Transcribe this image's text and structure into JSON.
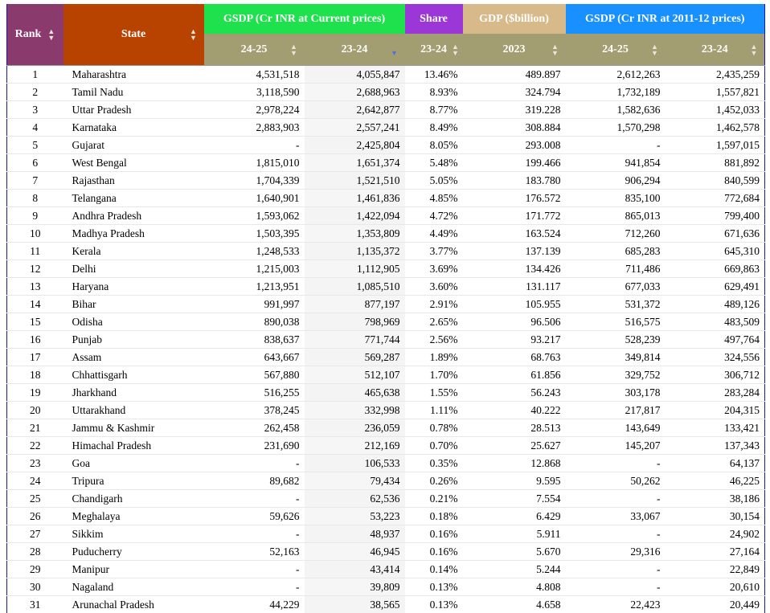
{
  "header": {
    "rank": "Rank",
    "state": "State",
    "groups": {
      "gsdp_current": "GSDP (Cr INR at Current prices)",
      "share": "Share",
      "gdp_billion": "GDP ($billion)",
      "gsdp_constant": "GSDP (Cr INR at 2011-12 prices)"
    },
    "subs": [
      "24-25",
      "23-24",
      "23-24",
      "2023",
      "24-25",
      "23-24"
    ]
  },
  "rows": [
    [
      "1",
      "Maharashtra",
      "4,531,518",
      "4,055,847",
      "13.46%",
      "489.897",
      "2,612,263",
      "2,435,259"
    ],
    [
      "2",
      "Tamil Nadu",
      "3,118,590",
      "2,688,963",
      "8.93%",
      "324.794",
      "1,732,189",
      "1,557,821"
    ],
    [
      "3",
      "Uttar Pradesh",
      "2,978,224",
      "2,642,877",
      "8.77%",
      "319.228",
      "1,582,636",
      "1,452,033"
    ],
    [
      "4",
      "Karnataka",
      "2,883,903",
      "2,557,241",
      "8.49%",
      "308.884",
      "1,570,298",
      "1,462,578"
    ],
    [
      "5",
      "Gujarat",
      "-",
      "2,425,804",
      "8.05%",
      "293.008",
      "-",
      "1,597,015"
    ],
    [
      "6",
      "West Bengal",
      "1,815,010",
      "1,651,374",
      "5.48%",
      "199.466",
      "941,854",
      "881,892"
    ],
    [
      "7",
      "Rajasthan",
      "1,704,339",
      "1,521,510",
      "5.05%",
      "183.780",
      "906,294",
      "840,599"
    ],
    [
      "8",
      "Telangana",
      "1,640,901",
      "1,461,836",
      "4.85%",
      "176.572",
      "835,100",
      "772,684"
    ],
    [
      "9",
      "Andhra Pradesh",
      "1,593,062",
      "1,422,094",
      "4.72%",
      "171.772",
      "865,013",
      "799,400"
    ],
    [
      "10",
      "Madhya Pradesh",
      "1,503,395",
      "1,353,809",
      "4.49%",
      "163.524",
      "712,260",
      "671,636"
    ],
    [
      "11",
      "Kerala",
      "1,248,533",
      "1,135,372",
      "3.77%",
      "137.139",
      "685,283",
      "645,310"
    ],
    [
      "12",
      "Delhi",
      "1,215,003",
      "1,112,905",
      "3.69%",
      "134.426",
      "711,486",
      "669,863"
    ],
    [
      "13",
      "Haryana",
      "1,213,951",
      "1,085,510",
      "3.60%",
      "131.117",
      "677,033",
      "629,491"
    ],
    [
      "14",
      "Bihar",
      "991,997",
      "877,197",
      "2.91%",
      "105.955",
      "531,372",
      "489,126"
    ],
    [
      "15",
      "Odisha",
      "890,038",
      "798,969",
      "2.65%",
      "96.506",
      "516,575",
      "483,509"
    ],
    [
      "16",
      "Punjab",
      "838,637",
      "771,744",
      "2.56%",
      "93.217",
      "528,239",
      "497,764"
    ],
    [
      "17",
      "Assam",
      "643,667",
      "569,287",
      "1.89%",
      "68.763",
      "349,814",
      "324,556"
    ],
    [
      "18",
      "Chhattisgarh",
      "567,880",
      "512,107",
      "1.70%",
      "61.856",
      "329,752",
      "306,712"
    ],
    [
      "19",
      "Jharkhand",
      "516,255",
      "465,638",
      "1.55%",
      "56.243",
      "303,178",
      "283,284"
    ],
    [
      "20",
      "Uttarakhand",
      "378,245",
      "332,998",
      "1.11%",
      "40.222",
      "217,817",
      "204,315"
    ],
    [
      "21",
      "Jammu & Kashmir",
      "262,458",
      "236,059",
      "0.78%",
      "28.513",
      "143,649",
      "133,421"
    ],
    [
      "22",
      "Himachal Pradesh",
      "231,690",
      "212,169",
      "0.70%",
      "25.627",
      "145,207",
      "137,343"
    ],
    [
      "23",
      "Goa",
      "-",
      "106,533",
      "0.35%",
      "12.868",
      "-",
      "64,137"
    ],
    [
      "24",
      "Tripura",
      "89,682",
      "79,434",
      "0.26%",
      "9.595",
      "50,262",
      "46,225"
    ],
    [
      "25",
      "Chandigarh",
      "-",
      "62,536",
      "0.21%",
      "7.554",
      "-",
      "38,186"
    ],
    [
      "26",
      "Meghalaya",
      "59,626",
      "53,223",
      "0.18%",
      "6.429",
      "33,067",
      "30,154"
    ],
    [
      "27",
      "Sikkim",
      "-",
      "48,937",
      "0.16%",
      "5.911",
      "-",
      "24,902"
    ],
    [
      "28",
      "Puducherry",
      "52,163",
      "46,945",
      "0.16%",
      "5.670",
      "29,316",
      "27,164"
    ],
    [
      "29",
      "Manipur",
      "-",
      "43,414",
      "0.14%",
      "5.244",
      "-",
      "22,849"
    ],
    [
      "30",
      "Nagaland",
      "-",
      "39,809",
      "0.13%",
      "4.808",
      "-",
      "20,610"
    ],
    [
      "31",
      "Arunachal Pradesh",
      "44,229",
      "38,565",
      "0.13%",
      "4.658",
      "22,423",
      "20,449"
    ]
  ],
  "colors": {
    "rank": "#8b3a6e",
    "state": "#b84300",
    "gsdp_current": "#1fe04d",
    "share": "#9b37d6",
    "gdp_billion": "#d8b98a",
    "gsdp_constant": "#1890ff",
    "subheader": "#a39e72"
  },
  "sorted_column": "23-24 (GSDP current)",
  "sort_direction": "descending"
}
